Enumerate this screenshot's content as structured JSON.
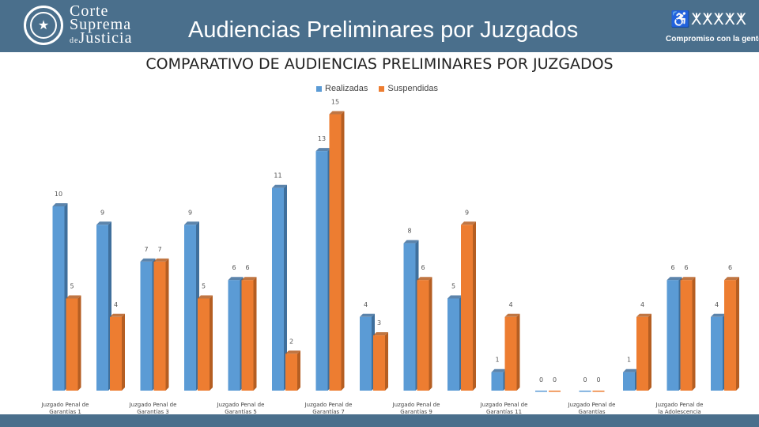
{
  "header": {
    "court_line1": "Corte",
    "court_line2": "Suprema",
    "court_line3_prefix": "de",
    "court_line3": "Justicia",
    "title": "Audiencias Preliminares por Juzgados",
    "motto": "Compromiso con la gente"
  },
  "colors": {
    "header": "#4a6f8c",
    "realizadas": "#5b9bd5",
    "suspendidas": "#ed7d31"
  },
  "chart_data": {
    "type": "bar",
    "title": "COMPARATIVO DE AUDIENCIAS PRELIMINARES POR JUZGADOS",
    "legend_position": "top-center",
    "grid": false,
    "ylim": [
      0,
      15
    ],
    "tick_labels": [
      "Juzgado Penal de Garantías 1",
      "Juzgado Penal de Garantías 3",
      "Juzgado Penal de Garantías 5",
      "Juzgado Penal de Garantías 7",
      "Juzgado Penal de Garantías 9",
      "Juzgado Penal de Garantías 11",
      "Juzgado Penal de Garantías",
      "Juzgado Penal de la Adolescencia"
    ],
    "tick_label_groups": [
      0,
      2,
      4,
      6,
      8,
      10,
      12,
      14
    ],
    "series": [
      {
        "name": "Realizadas",
        "values": [
          10,
          9,
          7,
          9,
          6,
          11,
          13,
          4,
          8,
          5,
          1,
          0,
          0,
          1,
          6,
          4
        ]
      },
      {
        "name": "Suspendidas",
        "values": [
          5,
          4,
          7,
          5,
          6,
          2,
          15,
          3,
          6,
          9,
          4,
          0,
          0,
          4,
          6,
          6
        ]
      }
    ]
  }
}
